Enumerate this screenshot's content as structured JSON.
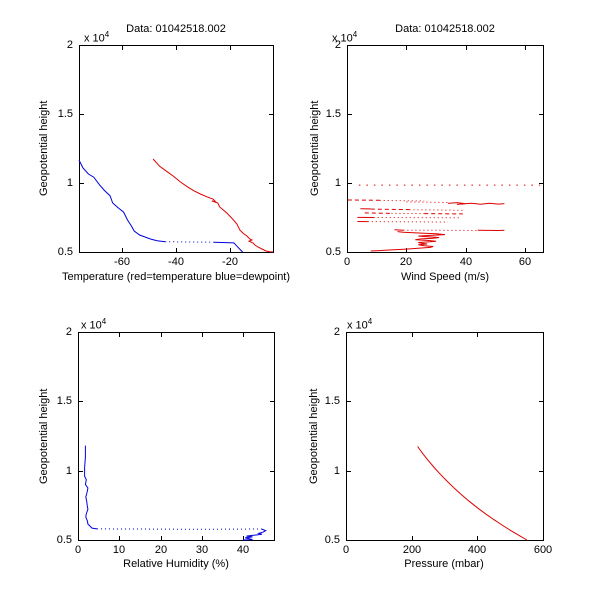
{
  "figure": {
    "background": "#ffffff",
    "axis_color": "#000000",
    "text_color": "#000000",
    "series_colors": {
      "red": "#dd0000",
      "blue": "#0000dd"
    }
  },
  "chart_data": [
    {
      "type": "line",
      "title": "Data: 01042518.002",
      "xlabel": "Temperature (red=temperature blue=dewpoint)",
      "ylabel": "Geopotential height",
      "y_scale_label": "x 10",
      "y_scale_exp": "4",
      "xlim": [
        -76,
        -4
      ],
      "ylim": [
        0.5,
        2
      ],
      "xticks": [
        -60,
        -40,
        -20
      ],
      "yticks": [
        0.5,
        1,
        1.5,
        2
      ],
      "grid": false,
      "legend": "none",
      "series": [
        {
          "name": "temperature-red",
          "color": "red",
          "style": "solid",
          "points": [
            [
              -48.5,
              1.174
            ],
            [
              -46,
              1.12
            ],
            [
              -43.5,
              1.085
            ],
            [
              -41,
              1.05
            ],
            [
              -38.5,
              1.01
            ],
            [
              -36,
              0.975
            ],
            [
              -33.5,
              0.945
            ],
            [
              -31,
              0.92
            ],
            [
              -28.5,
              0.9
            ],
            [
              -26.3,
              0.884
            ],
            [
              -25.2,
              0.862
            ],
            [
              -26.7,
              0.87
            ],
            [
              -24.5,
              0.855
            ],
            [
              -23.8,
              0.826
            ],
            [
              -21.2,
              0.783
            ],
            [
              -19.3,
              0.746
            ],
            [
              -17.4,
              0.703
            ],
            [
              -16.3,
              0.659
            ],
            [
              -15.2,
              0.638
            ],
            [
              -13.7,
              0.616
            ],
            [
              -12.6,
              0.594
            ],
            [
              -11.8,
              0.587
            ],
            [
              -12.9,
              0.578
            ],
            [
              -11.4,
              0.565
            ],
            [
              -10.7,
              0.551
            ],
            [
              -9.6,
              0.536
            ],
            [
              -8.1,
              0.522
            ],
            [
              -6.6,
              0.507
            ],
            [
              -5.2,
              0.502
            ],
            [
              -4,
              0.5
            ]
          ]
        },
        {
          "name": "dewpoint-blue-upper",
          "color": "blue",
          "style": "solid",
          "points": [
            [
              -76,
              1.167
            ],
            [
              -74.5,
              1.109
            ],
            [
              -72.5,
              1.065
            ],
            [
              -70.5,
              1.042
            ],
            [
              -68.5,
              0.99
            ],
            [
              -66.5,
              0.945
            ],
            [
              -64.5,
              0.908
            ],
            [
              -63.5,
              0.855
            ],
            [
              -61.5,
              0.82
            ],
            [
              -59.5,
              0.79
            ],
            [
              -58,
              0.732
            ],
            [
              -56.5,
              0.688
            ],
            [
              -55.5,
              0.652
            ],
            [
              -53.5,
              0.623
            ],
            [
              -51.5,
              0.609
            ],
            [
              -49.5,
              0.594
            ],
            [
              -47,
              0.582
            ],
            [
              -44,
              0.575
            ]
          ]
        },
        {
          "name": "dewpoint-blue-gap",
          "color": "blue",
          "style": "dotted",
          "points": [
            [
              -44,
              0.575
            ],
            [
              -38,
              0.573
            ],
            [
              -32,
              0.572
            ],
            [
              -26,
              0.571
            ]
          ]
        },
        {
          "name": "dewpoint-blue-lower",
          "color": "blue",
          "style": "solid",
          "points": [
            [
              -26,
              0.571
            ],
            [
              -18.5,
              0.566
            ],
            [
              -17.5,
              0.545
            ],
            [
              -16.4,
              0.522
            ],
            [
              -15.3,
              0.5
            ]
          ]
        }
      ]
    },
    {
      "type": "line",
      "title": "Data: 01042518.002",
      "xlabel": "Wind Speed (m/s)",
      "ylabel": "Geopotential height",
      "y_scale_label": "x 10",
      "y_scale_exp": "4",
      "xlim": [
        0,
        66
      ],
      "ylim": [
        0.5,
        2
      ],
      "xticks": [
        0,
        20,
        40,
        60
      ],
      "yticks": [
        0.5,
        1,
        1.5,
        2
      ],
      "grid": false,
      "legend": "none",
      "series": [
        {
          "name": "wind-row-1e4",
          "color": "red",
          "style": "sparse",
          "points": [
            [
              4,
              0.985
            ],
            [
              65,
              0.985
            ]
          ]
        },
        {
          "name": "wind-row-087-dash",
          "color": "red",
          "style": "dashed",
          "points": [
            [
              0.3,
              0.877
            ],
            [
              6,
              0.876
            ],
            [
              11,
              0.875
            ]
          ]
        },
        {
          "name": "wind-row-087-dots",
          "color": "red",
          "style": "dotted",
          "points": [
            [
              11,
              0.874
            ],
            [
              19,
              0.872
            ],
            [
              26,
              0.87
            ]
          ]
        },
        {
          "name": "wind-row-086-dots",
          "color": "red",
          "style": "dotted",
          "points": [
            [
              20,
              0.862
            ],
            [
              28,
              0.861
            ],
            [
              34,
              0.859
            ]
          ]
        },
        {
          "name": "wind-row-085-zigzag",
          "color": "red",
          "style": "solid",
          "points": [
            [
              34,
              0.852
            ],
            [
              37,
              0.858
            ],
            [
              40,
              0.85
            ],
            [
              37,
              0.845
            ],
            [
              42,
              0.853
            ],
            [
              45,
              0.846
            ],
            [
              48,
              0.853
            ],
            [
              51,
              0.847
            ],
            [
              53,
              0.851
            ]
          ]
        },
        {
          "name": "wind-row-081-solid",
          "color": "red",
          "style": "solid",
          "points": [
            [
              4.5,
              0.813
            ],
            [
              8,
              0.812
            ]
          ]
        },
        {
          "name": "wind-row-081-dash",
          "color": "red",
          "style": "dashed",
          "points": [
            [
              8,
              0.811
            ],
            [
              15,
              0.809
            ],
            [
              21,
              0.807
            ]
          ]
        },
        {
          "name": "wind-row-080-dots",
          "color": "red",
          "style": "dotted",
          "points": [
            [
              21,
              0.806
            ],
            [
              30,
              0.804
            ],
            [
              39,
              0.802
            ]
          ]
        },
        {
          "name": "wind-row-078-dash",
          "color": "red",
          "style": "dashed",
          "points": [
            [
              6,
              0.783
            ],
            [
              11,
              0.781
            ],
            [
              15,
              0.78
            ]
          ]
        },
        {
          "name": "wind-row-078-dots",
          "color": "red",
          "style": "dotted",
          "points": [
            [
              15,
              0.78
            ],
            [
              21,
              0.779
            ],
            [
              26,
              0.778
            ]
          ]
        },
        {
          "name": "wind-row-077-dash",
          "color": "red",
          "style": "dashed",
          "points": [
            [
              26,
              0.778
            ],
            [
              33,
              0.777
            ],
            [
              39,
              0.776
            ]
          ]
        },
        {
          "name": "wind-row-075-solid",
          "color": "red",
          "style": "solid",
          "points": [
            [
              3.5,
              0.751
            ],
            [
              9,
              0.75
            ]
          ]
        },
        {
          "name": "wind-row-075-dots",
          "color": "red",
          "style": "dotted",
          "points": [
            [
              9,
              0.75
            ],
            [
              24,
              0.749
            ],
            [
              38,
              0.748
            ]
          ]
        },
        {
          "name": "wind-row-072-solid",
          "color": "red",
          "style": "solid",
          "points": [
            [
              3.5,
              0.721
            ],
            [
              7,
              0.72
            ]
          ]
        },
        {
          "name": "wind-row-072-dots",
          "color": "red",
          "style": "dotted",
          "points": [
            [
              7,
              0.72
            ],
            [
              20,
              0.719
            ],
            [
              34,
              0.717
            ]
          ]
        },
        {
          "name": "wind-row-066-solid-left",
          "color": "red",
          "style": "solid",
          "points": [
            [
              16,
              0.661
            ],
            [
              19,
              0.658
            ]
          ]
        },
        {
          "name": "wind-row-066-dots",
          "color": "red",
          "style": "dotted",
          "points": [
            [
              19,
              0.658
            ],
            [
              32,
              0.657
            ],
            [
              44,
              0.656
            ]
          ]
        },
        {
          "name": "wind-row-066-solid-right",
          "color": "red",
          "style": "solid",
          "points": [
            [
              44,
              0.657
            ],
            [
              51,
              0.656
            ],
            [
              53,
              0.658
            ]
          ]
        },
        {
          "name": "wind-lower-profile",
          "color": "red",
          "style": "solid",
          "points": [
            [
              8,
              0.507
            ],
            [
              11,
              0.51
            ],
            [
              15,
              0.515
            ],
            [
              20,
              0.521
            ],
            [
              24,
              0.527
            ],
            [
              28,
              0.533
            ],
            [
              29,
              0.54
            ],
            [
              26,
              0.546
            ],
            [
              24,
              0.552
            ],
            [
              27,
              0.558
            ],
            [
              25,
              0.563
            ],
            [
              24,
              0.569
            ],
            [
              28,
              0.574
            ],
            [
              30,
              0.578
            ],
            [
              27,
              0.584
            ],
            [
              23,
              0.589
            ],
            [
              25,
              0.595
            ],
            [
              29,
              0.6
            ],
            [
              31,
              0.605
            ],
            [
              27,
              0.61
            ],
            [
              24,
              0.615
            ],
            [
              28,
              0.62
            ],
            [
              33,
              0.626
            ],
            [
              30,
              0.632
            ],
            [
              25,
              0.637
            ],
            [
              19,
              0.643
            ],
            [
              17,
              0.648
            ]
          ]
        }
      ]
    },
    {
      "type": "line",
      "title": "",
      "xlabel": "Relative Humidity (%)",
      "ylabel": "Geopotential height",
      "y_scale_label": "x 10",
      "y_scale_exp": "4",
      "xlim": [
        0,
        47.5
      ],
      "ylim": [
        0.5,
        2
      ],
      "xticks": [
        0,
        10,
        20,
        30,
        40
      ],
      "yticks": [
        0.5,
        1,
        1.5,
        2
      ],
      "grid": false,
      "legend": "none",
      "series": [
        {
          "name": "humidity-upper",
          "color": "blue",
          "style": "solid",
          "points": [
            [
              1.8,
              1.181
            ],
            [
              1.8,
              1.1
            ],
            [
              1.6,
              1.02
            ],
            [
              1.6,
              0.96
            ],
            [
              2,
              0.935
            ],
            [
              1.8,
              0.9
            ],
            [
              2.4,
              0.875
            ],
            [
              2.2,
              0.845
            ],
            [
              1.9,
              0.81
            ],
            [
              2.1,
              0.78
            ],
            [
              2.2,
              0.755
            ],
            [
              2.4,
              0.72
            ],
            [
              2,
              0.69
            ],
            [
              1.9,
              0.665
            ],
            [
              2.3,
              0.635
            ],
            [
              2.4,
              0.615
            ],
            [
              2.9,
              0.6
            ],
            [
              3.4,
              0.586
            ],
            [
              4.6,
              0.58
            ]
          ]
        },
        {
          "name": "humidity-gap",
          "color": "blue",
          "style": "dotted",
          "points": [
            [
              4.6,
              0.58
            ],
            [
              14,
              0.579
            ],
            [
              24,
              0.578
            ],
            [
              34,
              0.578
            ],
            [
              44.5,
              0.579
            ]
          ]
        },
        {
          "name": "humidity-lower",
          "color": "blue",
          "style": "solid",
          "points": [
            [
              44.5,
              0.579
            ],
            [
              45.5,
              0.567
            ],
            [
              44.8,
              0.556
            ],
            [
              43.8,
              0.548
            ],
            [
              44.6,
              0.541
            ],
            [
              42.5,
              0.534
            ],
            [
              40.8,
              0.528
            ],
            [
              42.3,
              0.522
            ],
            [
              40.5,
              0.515
            ],
            [
              41.5,
              0.509
            ],
            [
              42.3,
              0.503
            ],
            [
              40,
              0.5
            ]
          ]
        }
      ]
    },
    {
      "type": "line",
      "title": "",
      "xlabel": "Pressure (mbar)",
      "ylabel": "Geopotential height",
      "y_scale_label": "x 10",
      "y_scale_exp": "4",
      "xlim": [
        0,
        600
      ],
      "ylim": [
        0.5,
        2
      ],
      "xticks": [
        0,
        200,
        400,
        600
      ],
      "yticks": [
        0.5,
        1,
        1.5,
        2
      ],
      "grid": false,
      "legend": "none",
      "series": [
        {
          "name": "pressure-profile",
          "color": "red",
          "style": "solid",
          "points": [
            [
              218,
              1.174
            ],
            [
              235,
              1.119
            ],
            [
              250,
              1.075
            ],
            [
              270,
              1.019
            ],
            [
              290,
              0.967
            ],
            [
              310,
              0.919
            ],
            [
              330,
              0.873
            ],
            [
              350,
              0.83
            ],
            [
              375,
              0.78
            ],
            [
              400,
              0.733
            ],
            [
              425,
              0.689
            ],
            [
              450,
              0.647
            ],
            [
              475,
              0.608
            ],
            [
              500,
              0.571
            ],
            [
              525,
              0.535
            ],
            [
              551,
              0.5
            ]
          ]
        }
      ]
    }
  ]
}
